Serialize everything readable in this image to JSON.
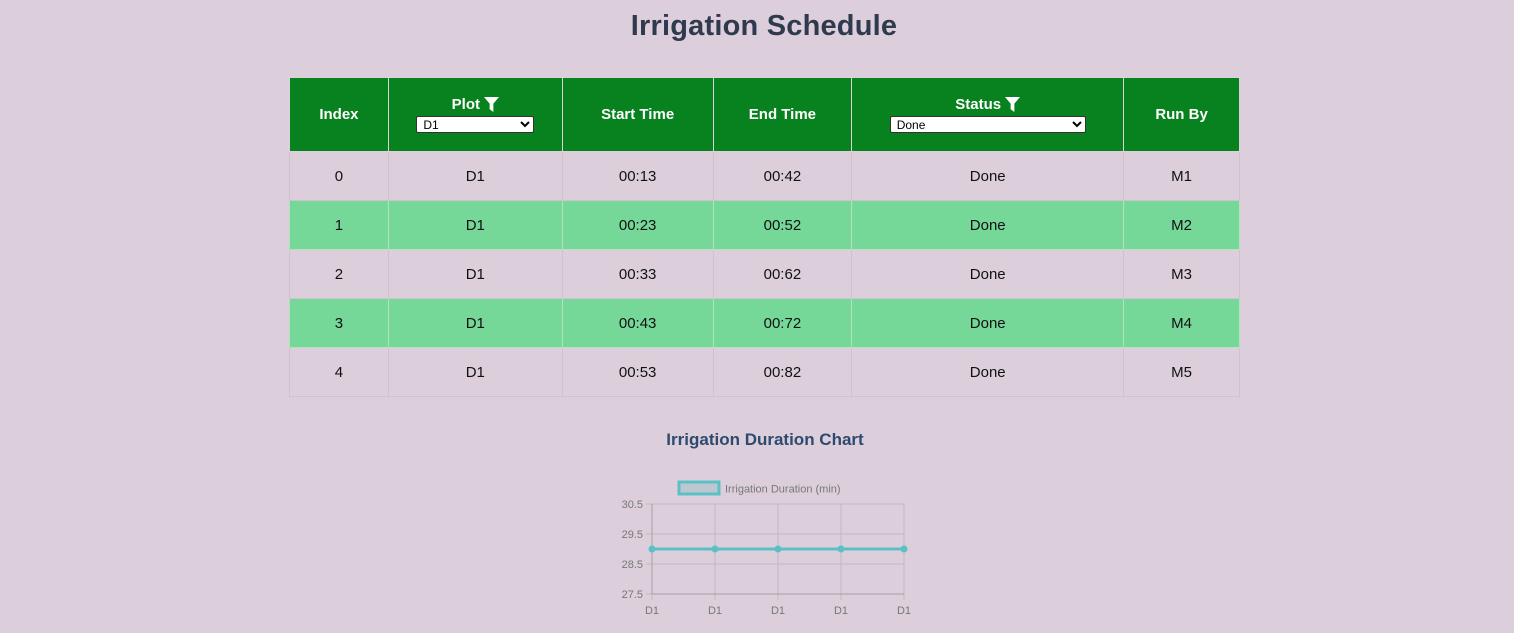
{
  "page_title": "Irrigation Schedule",
  "table": {
    "headers": {
      "index": "Index",
      "plot": "Plot",
      "start": "Start Time",
      "end": "End Time",
      "status": "Status",
      "run_by": "Run By"
    },
    "filters": {
      "plot_selected": "D1",
      "status_selected": "Done"
    },
    "rows": [
      {
        "index": "0",
        "plot": "D1",
        "start": "00:13",
        "end": "00:42",
        "status": "Done",
        "run_by": "M1"
      },
      {
        "index": "1",
        "plot": "D1",
        "start": "00:23",
        "end": "00:52",
        "status": "Done",
        "run_by": "M2"
      },
      {
        "index": "2",
        "plot": "D1",
        "start": "00:33",
        "end": "00:62",
        "status": "Done",
        "run_by": "M3"
      },
      {
        "index": "3",
        "plot": "D1",
        "start": "00:43",
        "end": "00:72",
        "status": "Done",
        "run_by": "M4"
      },
      {
        "index": "4",
        "plot": "D1",
        "start": "00:53",
        "end": "00:82",
        "status": "Done",
        "run_by": "M5"
      }
    ]
  },
  "chart_title": "Irrigation Duration Chart",
  "chart_data": {
    "type": "line",
    "categories": [
      "D1",
      "D1",
      "D1",
      "D1",
      "D1"
    ],
    "series": [
      {
        "name": "Irrigation Duration (min)",
        "values": [
          29,
          29,
          29,
          29,
          29
        ]
      }
    ],
    "ylim": [
      27.5,
      30.5
    ],
    "yticks": [
      "30.5",
      "29.5",
      "28.5",
      "27.5"
    ],
    "grid": true,
    "legend": "top",
    "color": "#5bc0c4"
  },
  "colors": {
    "header_bg": "#08821e",
    "stripe": "#75d898",
    "background": "#dccfdb"
  }
}
